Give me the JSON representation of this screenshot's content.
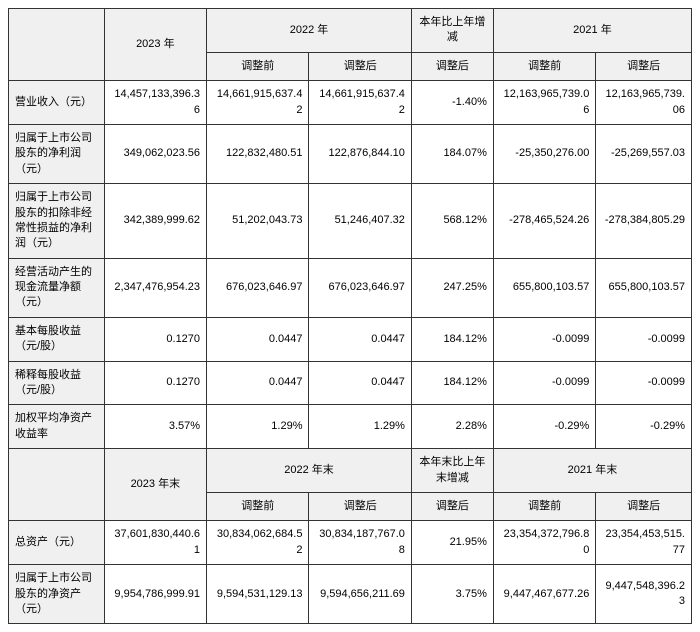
{
  "colors": {
    "border": "#333333",
    "header_bg": "#f0f0f0",
    "bg": "#ffffff",
    "text": "#000000"
  },
  "fontsize": 11,
  "header1": {
    "c1": "2023 年",
    "c2": "2022 年",
    "c3": "本年比上年增减",
    "c4": "2021 年"
  },
  "header2": {
    "before": "调整前",
    "after": "调整后"
  },
  "rows1": [
    {
      "label": "营业收入（元）",
      "c2023": "14,457,133,396.36",
      "c2022b": "14,661,915,637.42",
      "c2022a": "14,661,915,637.42",
      "chg": "-1.40%",
      "c2021b": "12,163,965,739.06",
      "c2021a": "12,163,965,739.06"
    },
    {
      "label": "归属于上市公司股东的净利润（元）",
      "c2023": "349,062,023.56",
      "c2022b": "122,832,480.51",
      "c2022a": "122,876,844.10",
      "chg": "184.07%",
      "c2021b": "-25,350,276.00",
      "c2021a": "-25,269,557.03"
    },
    {
      "label": "归属于上市公司股东的扣除非经常性损益的净利润（元）",
      "c2023": "342,389,999.62",
      "c2022b": "51,202,043.73",
      "c2022a": "51,246,407.32",
      "chg": "568.12%",
      "c2021b": "-278,465,524.26",
      "c2021a": "-278,384,805.29"
    },
    {
      "label": "经营活动产生的现金流量净额（元）",
      "c2023": "2,347,476,954.23",
      "c2022b": "676,023,646.97",
      "c2022a": "676,023,646.97",
      "chg": "247.25%",
      "c2021b": "655,800,103.57",
      "c2021a": "655,800,103.57"
    },
    {
      "label": "基本每股收益（元/股）",
      "c2023": "0.1270",
      "c2022b": "0.0447",
      "c2022a": "0.0447",
      "chg": "184.12%",
      "c2021b": "-0.0099",
      "c2021a": "-0.0099"
    },
    {
      "label": "稀释每股收益（元/股）",
      "c2023": "0.1270",
      "c2022b": "0.0447",
      "c2022a": "0.0447",
      "chg": "184.12%",
      "c2021b": "-0.0099",
      "c2021a": "-0.0099"
    },
    {
      "label": "加权平均净资产收益率",
      "c2023": "3.57%",
      "c2022b": "1.29%",
      "c2022a": "1.29%",
      "chg": "2.28%",
      "c2021b": "-0.29%",
      "c2021a": "-0.29%"
    }
  ],
  "header3": {
    "c1": "2023 年末",
    "c2": "2022 年末",
    "c3": "本年末比上年末增减",
    "c4": "2021 年末"
  },
  "rows2": [
    {
      "label": "总资产（元）",
      "c2023": "37,601,830,440.61",
      "c2022b": "30,834,062,684.52",
      "c2022a": "30,834,187,767.08",
      "chg": "21.95%",
      "c2021b": "23,354,372,796.80",
      "c2021a": "23,354,453,515.77"
    },
    {
      "label": "归属于上市公司股东的净资产（元）",
      "c2023": "9,954,786,999.91",
      "c2022b": "9,594,531,129.13",
      "c2022a": "9,594,656,211.69",
      "chg": "3.75%",
      "c2021b": "9,447,467,677.26",
      "c2021a": "9,447,548,396.23"
    }
  ]
}
